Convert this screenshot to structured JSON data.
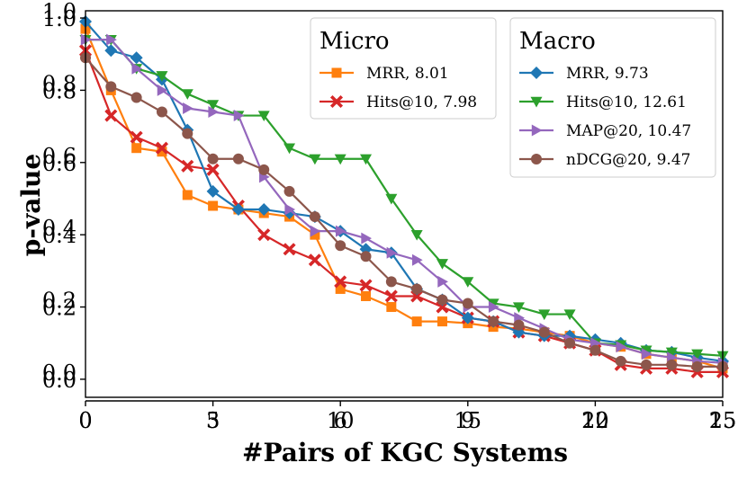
{
  "chart_data": {
    "type": "line",
    "xlabel": "#Pairs of KGC Systems",
    "ylabel": "p-value",
    "xlim": [
      0,
      25
    ],
    "ylim": [
      -0.05,
      1.02
    ],
    "x_ticks": [
      0,
      5,
      10,
      15,
      20,
      25
    ],
    "x_ticks_overlay": [
      0,
      3,
      6,
      9,
      12,
      15
    ],
    "y_ticks": [
      "0.0",
      "0.2",
      "0.4",
      "0.6",
      "0.8",
      "1.0"
    ],
    "legends": [
      {
        "title": "Micro",
        "entries": [
          {
            "label": "MRR, 8.01",
            "series": 0
          },
          {
            "label": "Hits@10, 7.98",
            "series": 1
          }
        ]
      },
      {
        "title": "Macro",
        "entries": [
          {
            "label": "MRR, 9.73",
            "series": 2
          },
          {
            "label": "Hits@10, 12.61",
            "series": 3
          },
          {
            "label": "MAP@20, 10.47",
            "series": 4
          },
          {
            "label": "nDCG@20, 9.47",
            "series": 5
          }
        ]
      }
    ],
    "series": [
      {
        "name": "Micro MRR",
        "color": "#ff7f0e",
        "marker": "square",
        "x": [
          0,
          1,
          2,
          3,
          4,
          5,
          6,
          7,
          8,
          9,
          10,
          11,
          12,
          13,
          14,
          15,
          16,
          17,
          18,
          19,
          20,
          21,
          22,
          23,
          24,
          25
        ],
        "values": [
          0.97,
          0.8,
          0.64,
          0.63,
          0.51,
          0.48,
          0.47,
          0.46,
          0.45,
          0.4,
          0.25,
          0.23,
          0.2,
          0.16,
          0.16,
          0.155,
          0.145,
          0.14,
          0.13,
          0.12,
          0.1,
          0.09,
          0.07,
          0.06,
          0.05,
          0.03
        ]
      },
      {
        "name": "Micro Hits@10",
        "color": "#d62728",
        "marker": "x",
        "x": [
          0,
          1,
          2,
          3,
          4,
          5,
          6,
          7,
          8,
          9,
          10,
          11,
          12,
          13,
          14,
          15,
          16,
          17,
          18,
          19,
          20,
          21,
          22,
          23,
          24,
          25
        ],
        "values": [
          0.91,
          0.73,
          0.67,
          0.64,
          0.59,
          0.58,
          0.48,
          0.4,
          0.36,
          0.33,
          0.27,
          0.26,
          0.23,
          0.23,
          0.2,
          0.17,
          0.16,
          0.13,
          0.12,
          0.1,
          0.08,
          0.04,
          0.03,
          0.03,
          0.02,
          0.02
        ]
      },
      {
        "name": "Macro MRR",
        "color": "#1f77b4",
        "marker": "diamond",
        "x": [
          0,
          1,
          2,
          3,
          4,
          5,
          6,
          7,
          8,
          9,
          10,
          11,
          12,
          13,
          14,
          15,
          16,
          17,
          18,
          19,
          20,
          21,
          22,
          23,
          24,
          25
        ],
        "values": [
          0.99,
          0.91,
          0.89,
          0.83,
          0.69,
          0.52,
          0.47,
          0.47,
          0.46,
          0.45,
          0.41,
          0.36,
          0.35,
          0.25,
          0.22,
          0.17,
          0.16,
          0.13,
          0.12,
          0.12,
          0.11,
          0.1,
          0.08,
          0.075,
          0.06,
          0.05
        ]
      },
      {
        "name": "Macro Hits@10",
        "color": "#2ca02c",
        "marker": "triangle-down",
        "x": [
          0,
          1,
          2,
          3,
          4,
          5,
          6,
          7,
          8,
          9,
          10,
          11,
          12,
          13,
          14,
          15,
          16,
          17,
          18,
          19,
          20,
          21,
          22,
          23,
          24,
          25
        ],
        "values": [
          0.94,
          0.94,
          0.86,
          0.84,
          0.79,
          0.76,
          0.73,
          0.73,
          0.64,
          0.61,
          0.61,
          0.61,
          0.5,
          0.4,
          0.32,
          0.27,
          0.21,
          0.2,
          0.18,
          0.18,
          0.1,
          0.095,
          0.08,
          0.075,
          0.07,
          0.065
        ]
      },
      {
        "name": "Macro MAP@20",
        "color": "#9467bd",
        "marker": "triangle-right",
        "x": [
          0,
          1,
          2,
          3,
          4,
          5,
          6,
          7,
          8,
          9,
          10,
          11,
          12,
          13,
          14,
          15,
          16,
          17,
          18,
          19,
          20,
          21,
          22,
          23,
          24,
          25
        ],
        "values": [
          0.94,
          0.94,
          0.86,
          0.8,
          0.75,
          0.74,
          0.73,
          0.56,
          0.47,
          0.41,
          0.41,
          0.39,
          0.35,
          0.33,
          0.27,
          0.2,
          0.2,
          0.17,
          0.14,
          0.11,
          0.1,
          0.09,
          0.07,
          0.06,
          0.05,
          0.045
        ]
      },
      {
        "name": "Macro nDCG@20",
        "color": "#8c564b",
        "marker": "circle",
        "x": [
          0,
          1,
          2,
          3,
          4,
          5,
          6,
          7,
          8,
          9,
          10,
          11,
          12,
          13,
          14,
          15,
          16,
          17,
          18,
          19,
          20,
          21,
          22,
          23,
          24,
          25
        ],
        "values": [
          0.89,
          0.81,
          0.78,
          0.74,
          0.68,
          0.61,
          0.61,
          0.58,
          0.52,
          0.45,
          0.37,
          0.34,
          0.27,
          0.25,
          0.22,
          0.21,
          0.16,
          0.15,
          0.13,
          0.1,
          0.08,
          0.05,
          0.04,
          0.04,
          0.035,
          0.035
        ]
      }
    ]
  }
}
